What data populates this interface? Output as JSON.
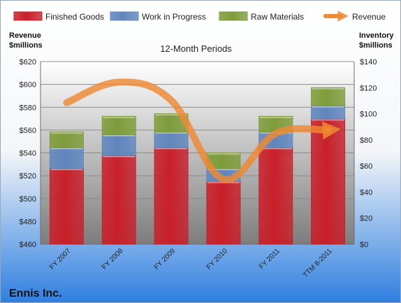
{
  "company": "Ennis Inc.",
  "chart_data": {
    "type": "bar",
    "stacked": true,
    "title": "12-Month Periods",
    "categories": [
      "FY 2007",
      "FY 2008",
      "FY 2009",
      "FY 2010",
      "FY 2011",
      "TTM 8-2011"
    ],
    "series": [
      {
        "name": "Finished Goods",
        "axis": "right",
        "color": "#c8202a",
        "values": [
          58,
          68,
          74,
          48,
          74,
          96
        ]
      },
      {
        "name": "Work in Progress",
        "axis": "right",
        "color": "#5f86bd",
        "values": [
          16,
          16,
          12,
          10,
          12,
          10
        ]
      },
      {
        "name": "Raw Materials",
        "axis": "right",
        "color": "#7e9c3a",
        "values": [
          12,
          14,
          14,
          12,
          12,
          14
        ]
      },
      {
        "name": "Revenue",
        "axis": "left",
        "type": "line",
        "color": "#ee8a33",
        "values": [
          584,
          602,
          586,
          517,
          557,
          560
        ]
      }
    ],
    "left_axis": {
      "label": "Revenue $millions",
      "label_lines": [
        "Revenue",
        "$millions"
      ],
      "ylim": [
        460,
        620
      ],
      "ticks": [
        "$460",
        "$480",
        "$500",
        "$520",
        "$540",
        "$560",
        "$580",
        "$600",
        "$620"
      ]
    },
    "right_axis": {
      "label": "Inventory $millions",
      "label_lines": [
        "Inventory",
        "$millions"
      ],
      "ylim": [
        0,
        140
      ],
      "ticks": [
        "$0",
        "$20",
        "$40",
        "$60",
        "$80",
        "$100",
        "$120",
        "$140"
      ]
    },
    "legend_position": "top",
    "grid": true
  }
}
